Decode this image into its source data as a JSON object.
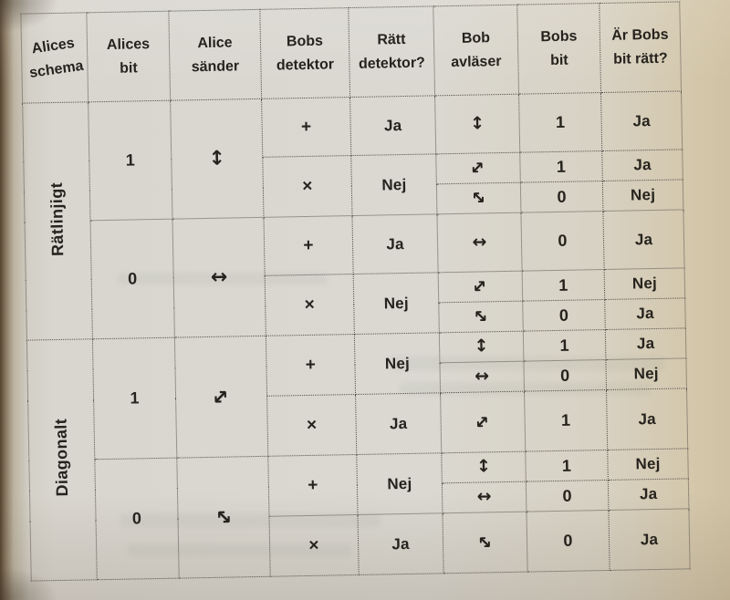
{
  "colors": {
    "paper": "#d9d6cf",
    "ink": "#26231e",
    "grid": "#55504a",
    "edge": "#51432f",
    "margin_warm": "#d3c6a9"
  },
  "arrows": {
    "updown": {
      "glyph": "↕",
      "rot": 0
    },
    "leftright": {
      "glyph": "↔",
      "rot": 0
    },
    "diag_ne": {
      "glyph": "↔",
      "rot": -45
    },
    "diag_nw": {
      "glyph": "↔",
      "rot": 45
    }
  },
  "table": {
    "headers": [
      {
        "line1": "Alices",
        "line2": "schema"
      },
      {
        "line1": "Alices",
        "line2": "bit"
      },
      {
        "line1": "Alice",
        "line2": "sänder"
      },
      {
        "line1": "Bobs",
        "line2": "detektor"
      },
      {
        "line1": "Rätt",
        "line2": "detektor?"
      },
      {
        "line1": "Bob",
        "line2": "avläser"
      },
      {
        "line1": "Bobs",
        "line2": "bit"
      },
      {
        "line1": "Är Bobs",
        "line2": "bit rätt?"
      }
    ],
    "schema_groups": [
      "Rätlinjigt",
      "Diagonalt"
    ],
    "rows": [
      {
        "alices_bit": "1",
        "alice_sander": "updown",
        "bobs_detektor": "+",
        "ratt_detektor": "Ja",
        "bob_avlaser": "updown",
        "bobs_bit": "1",
        "ar_bobs_bit_ratt": "Ja"
      },
      {
        "bobs_detektor": "×",
        "ratt_detektor": "Nej",
        "bob_avlaser": "diag_ne",
        "bobs_bit": "1",
        "ar_bobs_bit_ratt": "Ja"
      },
      {
        "bob_avlaser": "diag_nw",
        "bobs_bit": "0",
        "ar_bobs_bit_ratt": "Nej"
      },
      {
        "alices_bit": "0",
        "alice_sander": "leftright",
        "bobs_detektor": "+",
        "ratt_detektor": "Ja",
        "bob_avlaser": "leftright",
        "bobs_bit": "0",
        "ar_bobs_bit_ratt": "Ja"
      },
      {
        "bobs_detektor": "×",
        "ratt_detektor": "Nej",
        "bob_avlaser": "diag_ne",
        "bobs_bit": "1",
        "ar_bobs_bit_ratt": "Nej"
      },
      {
        "bob_avlaser": "diag_nw",
        "bobs_bit": "0",
        "ar_bobs_bit_ratt": "Ja"
      },
      {
        "alices_bit": "1",
        "alice_sander": "diag_ne",
        "bobs_detektor": "+",
        "ratt_detektor": "Nej",
        "bob_avlaser": "updown",
        "bobs_bit": "1",
        "ar_bobs_bit_ratt": "Ja"
      },
      {
        "bob_avlaser": "leftright",
        "bobs_bit": "0",
        "ar_bobs_bit_ratt": "Nej"
      },
      {
        "bobs_detektor": "×",
        "ratt_detektor": "Ja",
        "bob_avlaser": "diag_ne",
        "bobs_bit": "1",
        "ar_bobs_bit_ratt": "Ja"
      },
      {
        "alices_bit": "0",
        "alice_sander": "diag_nw",
        "bobs_detektor": "+",
        "ratt_detektor": "Nej",
        "bob_avlaser": "updown",
        "bobs_bit": "1",
        "ar_bobs_bit_ratt": "Nej"
      },
      {
        "bob_avlaser": "leftright",
        "bobs_bit": "0",
        "ar_bobs_bit_ratt": "Ja"
      },
      {
        "bobs_detektor": "×",
        "ratt_detektor": "Ja",
        "bob_avlaser": "diag_nw",
        "bobs_bit": "0",
        "ar_bobs_bit_ratt": "Ja"
      }
    ]
  }
}
